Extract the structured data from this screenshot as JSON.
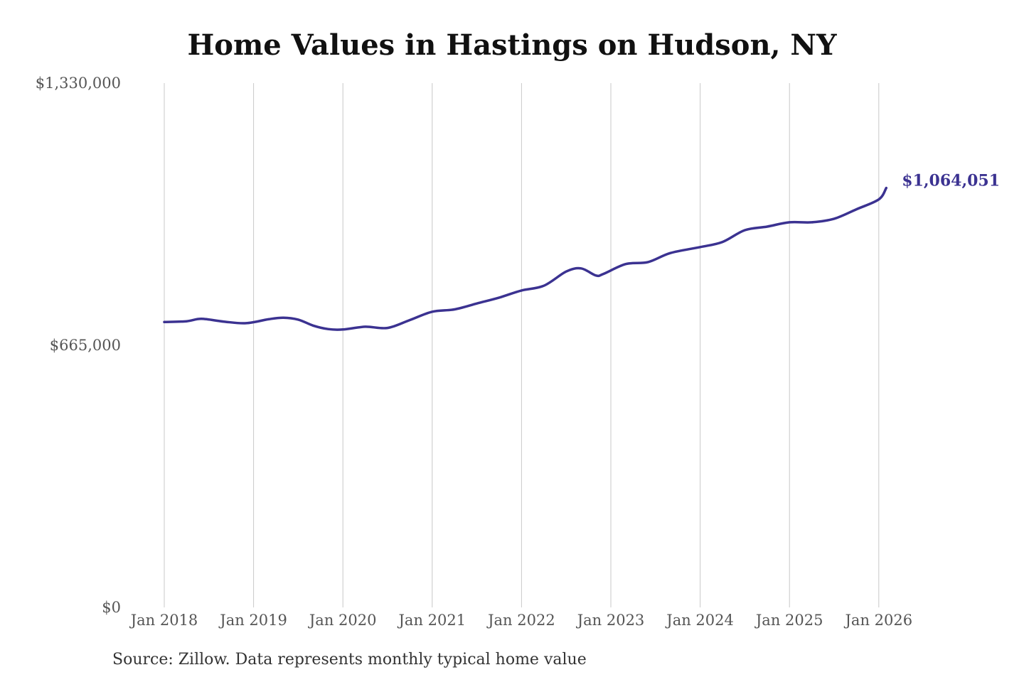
{
  "chart_data": {
    "type": "line",
    "title": "Home Values in Hastings on Hudson, NY",
    "xlabel": "",
    "ylabel": "",
    "source": "Source: Zillow. Data represents monthly typical home value",
    "x_range": [
      "2018-01",
      "2026-02"
    ],
    "ylim": [
      0,
      1330000
    ],
    "y_ticks": [
      {
        "value": 1330000,
        "label": "$1,330,000"
      },
      {
        "value": 665000,
        "label": "$665,000"
      },
      {
        "value": 0,
        "label": "$0"
      }
    ],
    "x_ticks": [
      {
        "date": "2018-01",
        "label": "Jan 2018"
      },
      {
        "date": "2019-01",
        "label": "Jan 2019"
      },
      {
        "date": "2020-01",
        "label": "Jan 2020"
      },
      {
        "date": "2021-01",
        "label": "Jan 2021"
      },
      {
        "date": "2022-01",
        "label": "Jan 2022"
      },
      {
        "date": "2023-01",
        "label": "Jan 2023"
      },
      {
        "date": "2024-01",
        "label": "Jan 2024"
      },
      {
        "date": "2025-01",
        "label": "Jan 2025"
      },
      {
        "date": "2026-01",
        "label": "Jan 2026"
      }
    ],
    "grid": {
      "vertical": true,
      "horizontal": false
    },
    "series": [
      {
        "name": "",
        "color": "#3b3291",
        "points": [
          {
            "x": "2018-01",
            "y": 724000
          },
          {
            "x": "2018-04",
            "y": 726000
          },
          {
            "x": "2018-06",
            "y": 732000
          },
          {
            "x": "2018-09",
            "y": 725000
          },
          {
            "x": "2018-12",
            "y": 721000
          },
          {
            "x": "2019-03",
            "y": 731000
          },
          {
            "x": "2019-05",
            "y": 735000
          },
          {
            "x": "2019-07",
            "y": 730000
          },
          {
            "x": "2019-09",
            "y": 715000
          },
          {
            "x": "2019-11",
            "y": 706000
          },
          {
            "x": "2020-01",
            "y": 705000
          },
          {
            "x": "2020-04",
            "y": 712000
          },
          {
            "x": "2020-07",
            "y": 709000
          },
          {
            "x": "2020-10",
            "y": 729000
          },
          {
            "x": "2021-01",
            "y": 750000
          },
          {
            "x": "2021-04",
            "y": 756000
          },
          {
            "x": "2021-07",
            "y": 771000
          },
          {
            "x": "2021-10",
            "y": 786000
          },
          {
            "x": "2022-01",
            "y": 804000
          },
          {
            "x": "2022-04",
            "y": 816000
          },
          {
            "x": "2022-07",
            "y": 852000
          },
          {
            "x": "2022-09",
            "y": 860000
          },
          {
            "x": "2022-11",
            "y": 842000
          },
          {
            "x": "2022-12",
            "y": 846000
          },
          {
            "x": "2023-03",
            "y": 871000
          },
          {
            "x": "2023-06",
            "y": 876000
          },
          {
            "x": "2023-09",
            "y": 899000
          },
          {
            "x": "2024-01",
            "y": 914000
          },
          {
            "x": "2024-04",
            "y": 927000
          },
          {
            "x": "2024-07",
            "y": 957000
          },
          {
            "x": "2024-10",
            "y": 966000
          },
          {
            "x": "2025-01",
            "y": 977000
          },
          {
            "x": "2025-04",
            "y": 977000
          },
          {
            "x": "2025-07",
            "y": 986000
          },
          {
            "x": "2025-10",
            "y": 1010000
          },
          {
            "x": "2026-01",
            "y": 1035000
          },
          {
            "x": "2026-02",
            "y": 1064051
          }
        ],
        "end_label": "$1,064,051"
      }
    ]
  }
}
